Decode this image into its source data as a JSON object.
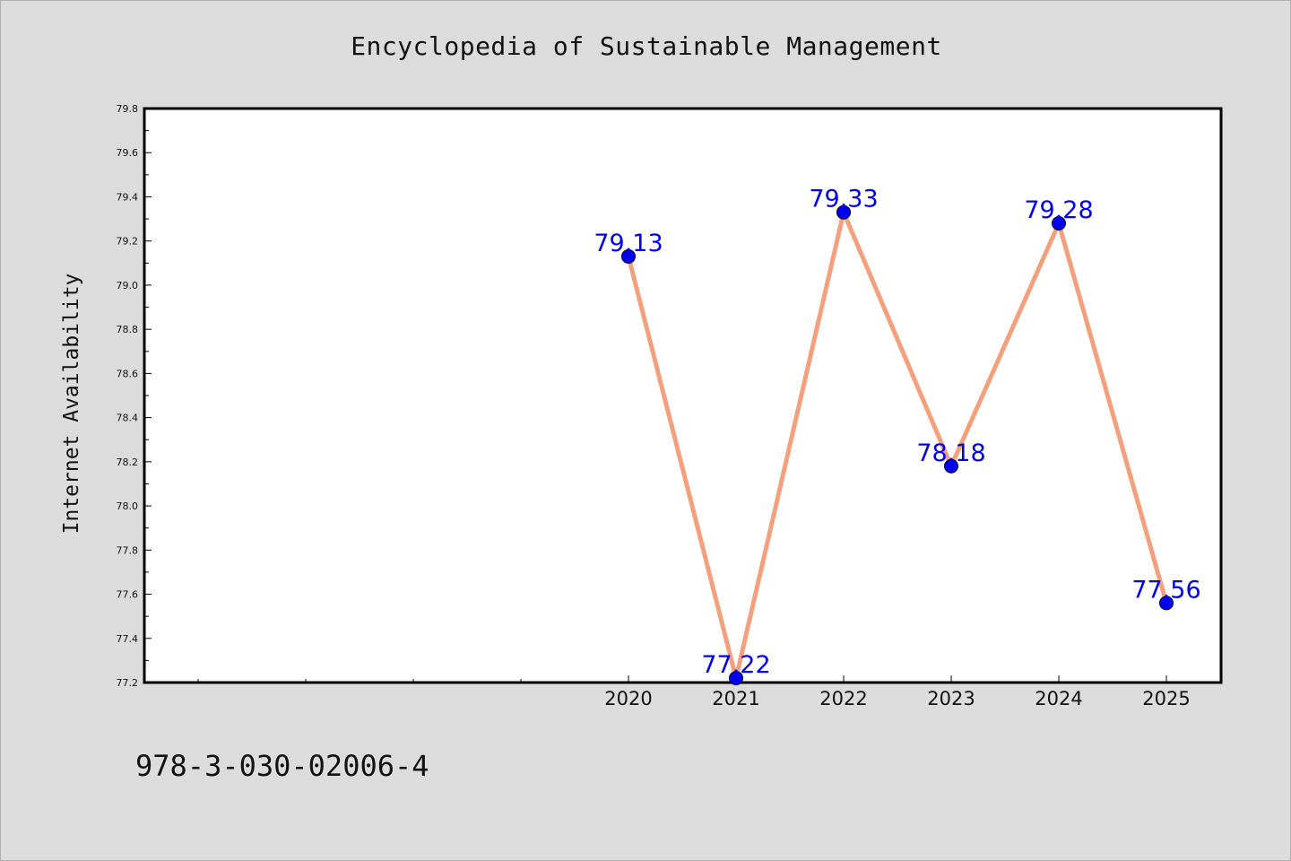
{
  "chart_data": {
    "type": "line",
    "title": "Encyclopedia of Sustainable Management",
    "xlabel": "",
    "ylabel": "Internet Availability",
    "categories": [
      "2020",
      "2021",
      "2022",
      "2023",
      "2024",
      "2025"
    ],
    "series": [
      {
        "values": [
          79.13,
          77.22,
          79.33,
          78.18,
          79.28,
          77.56
        ],
        "data_labels": [
          "79.13",
          "77.22",
          "79.33",
          "78.18",
          "79.28",
          "77.56"
        ],
        "line_color": "#f4a07c",
        "marker_color": "#0000ee"
      }
    ],
    "ylim": [
      77.2,
      79.8
    ],
    "y_ticks": [
      "77.2",
      "77.4",
      "77.6",
      "77.8",
      "78.0",
      "78.2",
      "78.4",
      "78.6",
      "78.8",
      "79.0",
      "79.2",
      "79.4",
      "79.6",
      "79.8"
    ],
    "grid": false,
    "legend": "none",
    "label_color": "#0000ee"
  },
  "footer": {
    "isbn": "978-3-030-02006-4"
  }
}
